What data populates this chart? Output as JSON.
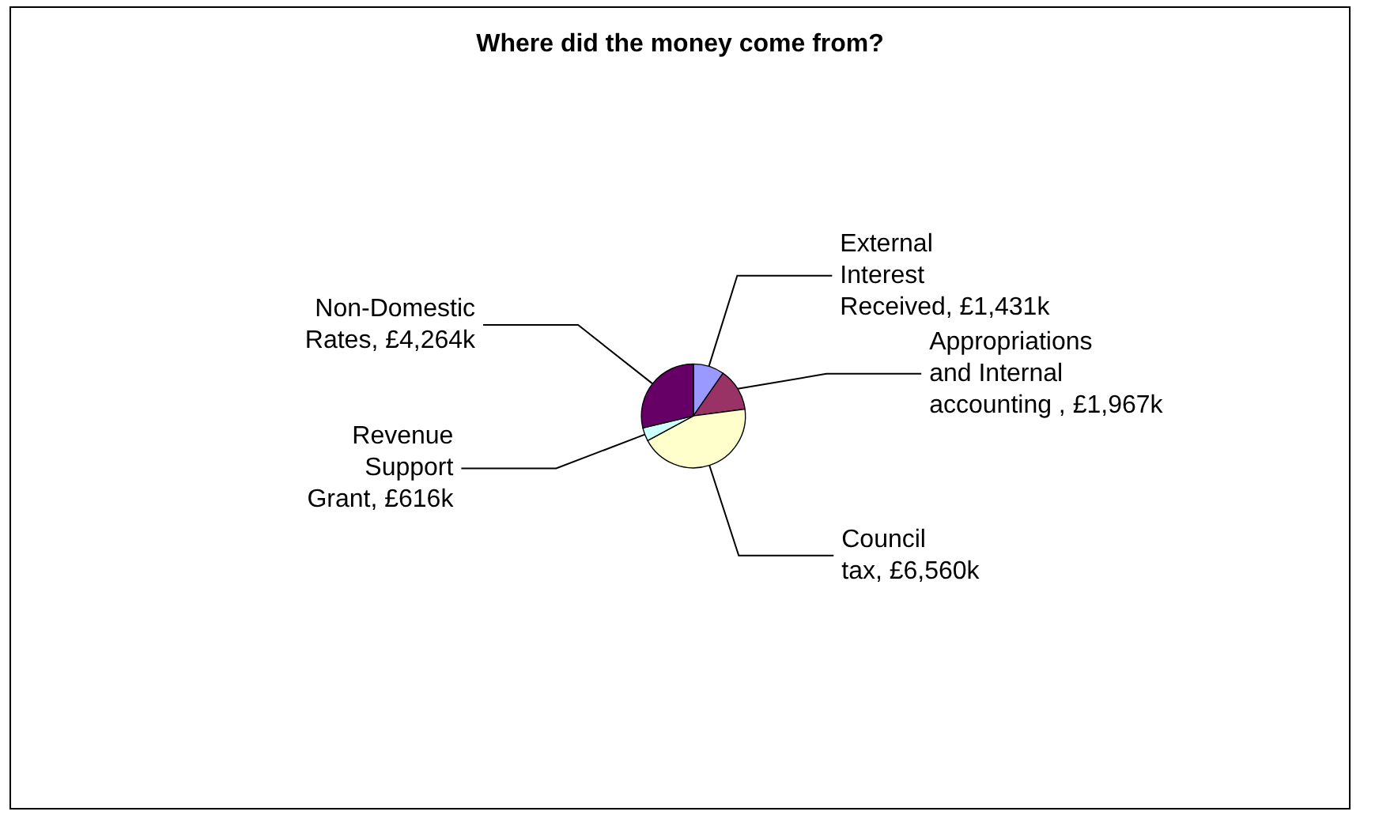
{
  "chart_data": {
    "type": "pie",
    "title": "Where did the money come from?",
    "categories": [
      "External Interest Received",
      "Appropriations and Internal accounting ",
      "Council tax",
      "Revenue Support Grant",
      "Non-Domestic Rates"
    ],
    "values": [
      1431,
      1967,
      6560,
      616,
      4264
    ],
    "value_labels": [
      "£1,431k",
      "£1,967k",
      "£6,560k",
      "£616k",
      "£4,264k"
    ],
    "colors": [
      "#9999ff",
      "#993366",
      "#ffffcc",
      "#ccffff",
      "#660066"
    ],
    "legend": false
  }
}
